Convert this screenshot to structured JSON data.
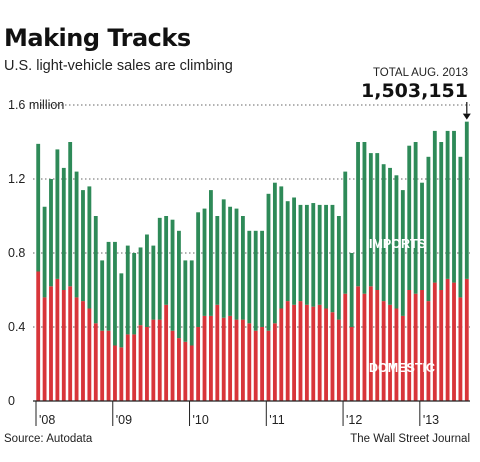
{
  "title": "Making Tracks",
  "subtitle": "U.S. light-vehicle sales are climbing",
  "callout": {
    "label": "TOTAL AUG. 2013",
    "value": "1,503,151"
  },
  "source": "Source: Autodata",
  "credit": "The Wall Street Journal",
  "colors": {
    "imports": "#2e8a58",
    "domestic": "#d8353a",
    "grid": "#666666"
  },
  "chart_data": {
    "type": "bar",
    "stacked": true,
    "ylim": [
      0,
      1.6
    ],
    "y_ticks": [
      {
        "value": 0,
        "label": "0"
      },
      {
        "value": 0.4,
        "label": "0.4"
      },
      {
        "value": 0.8,
        "label": "0.8"
      },
      {
        "value": 1.2,
        "label": "1.2"
      },
      {
        "value": 1.6,
        "label": "1.6 million"
      }
    ],
    "x_ticks": [
      {
        "index": 0,
        "label": "'08"
      },
      {
        "index": 12,
        "label": "'09"
      },
      {
        "index": 24,
        "label": "'10"
      },
      {
        "index": 36,
        "label": "'11"
      },
      {
        "index": 48,
        "label": "'12"
      },
      {
        "index": 60,
        "label": "'13"
      }
    ],
    "series_labels": {
      "imports": "IMPORTS",
      "domestic": "DOMESTIC"
    },
    "series": [
      {
        "name": "DOMESTIC",
        "values": [
          0.7,
          0.56,
          0.62,
          0.66,
          0.6,
          0.62,
          0.56,
          0.54,
          0.5,
          0.42,
          0.38,
          0.38,
          0.3,
          0.29,
          0.36,
          0.36,
          0.41,
          0.4,
          0.44,
          0.44,
          0.52,
          0.38,
          0.34,
          0.32,
          0.3,
          0.4,
          0.46,
          0.46,
          0.52,
          0.45,
          0.46,
          0.44,
          0.44,
          0.42,
          0.38,
          0.4,
          0.38,
          0.42,
          0.5,
          0.54,
          0.52,
          0.54,
          0.52,
          0.51,
          0.52,
          0.5,
          0.48,
          0.44,
          0.58,
          0.4,
          0.62,
          0.58,
          0.62,
          0.6,
          0.54,
          0.52,
          0.5,
          0.46,
          0.6,
          0.58,
          0.6,
          0.54,
          0.64,
          0.6,
          0.66,
          0.64,
          0.56,
          0.66
        ]
      },
      {
        "name": "IMPORTS",
        "values": [
          0.69,
          0.49,
          0.58,
          0.7,
          0.66,
          0.78,
          0.68,
          0.6,
          0.66,
          0.58,
          0.38,
          0.48,
          0.56,
          0.4,
          0.48,
          0.44,
          0.42,
          0.5,
          0.4,
          0.55,
          0.48,
          0.6,
          0.58,
          0.44,
          0.46,
          0.62,
          0.58,
          0.68,
          0.48,
          0.64,
          0.59,
          0.6,
          0.56,
          0.5,
          0.54,
          0.52,
          0.74,
          0.76,
          0.66,
          0.54,
          0.58,
          0.52,
          0.54,
          0.56,
          0.54,
          0.56,
          0.58,
          0.56,
          0.66,
          0.4,
          0.78,
          0.82,
          0.72,
          0.74,
          0.74,
          0.74,
          0.72,
          0.68,
          0.78,
          0.82,
          0.58,
          0.78,
          0.82,
          0.8,
          0.8,
          0.82,
          0.76,
          0.85
        ]
      }
    ]
  }
}
